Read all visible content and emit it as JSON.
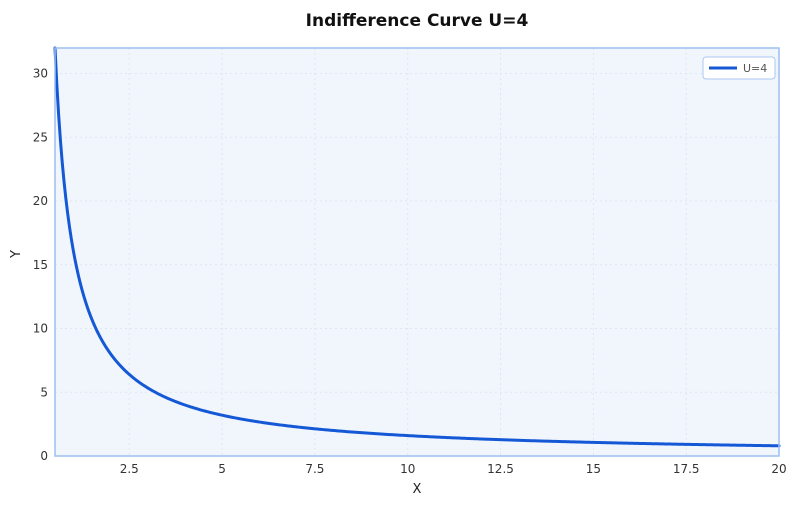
{
  "chart_data": {
    "type": "line",
    "title": "Indifference Curve U=4",
    "xlabel": "X",
    "ylabel": "Y",
    "xlim": [
      0.5,
      20
    ],
    "ylim": [
      0,
      32
    ],
    "x_ticks": [
      2.5,
      5,
      7.5,
      10,
      12.5,
      15,
      17.5,
      20
    ],
    "x_tick_labels": [
      "2.5",
      "5",
      "7.5",
      "10",
      "12.5",
      "15",
      "17.5",
      "20"
    ],
    "y_ticks": [
      0,
      5,
      10,
      15,
      20,
      25,
      30
    ],
    "y_tick_labels": [
      "0",
      "5",
      "10",
      "15",
      "20",
      "25",
      "30"
    ],
    "grid": true,
    "legend_position": "upper right",
    "series": [
      {
        "name": "U=4",
        "color": "#1558d6",
        "formula": "Y = 16 / X",
        "x": [
          0.5,
          0.75,
          1,
          1.5,
          2,
          2.5,
          3,
          4,
          5,
          6,
          7.5,
          10,
          12.5,
          15,
          17.5,
          20
        ],
        "y": [
          32,
          21.33,
          16,
          10.67,
          8,
          6.4,
          5.33,
          4,
          3.2,
          2.67,
          2.13,
          1.6,
          1.28,
          1.07,
          0.91,
          0.8
        ]
      }
    ]
  },
  "colors": {
    "plot_background": "#f1f6fd",
    "plot_border": "#9dbff0",
    "grid": "#dde6f3",
    "line": "#1558d6"
  }
}
